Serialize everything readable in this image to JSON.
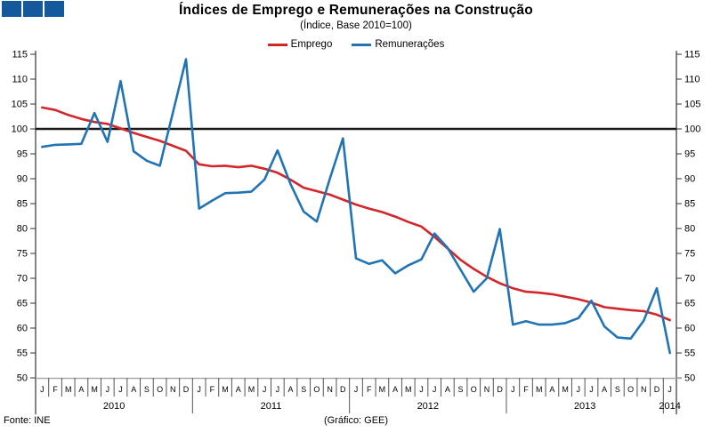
{
  "header": {
    "title": "Índices de Emprego e Remunerações na Construção",
    "subtitle": "(Índice, Base 2010=100)"
  },
  "logo": {
    "square_count": 3,
    "color": "#15599d"
  },
  "legend": {
    "position": "top",
    "items": [
      {
        "label": "Emprego",
        "color": "#d2262b"
      },
      {
        "label": "Remunerações",
        "color": "#2173b4"
      }
    ]
  },
  "chart_data": {
    "type": "line",
    "title": "Índices de Emprego e Remunerações na Construção",
    "subtitle": "(Índice, Base 2010=100)",
    "x_unit": "month",
    "month_letter_cycle": [
      "J",
      "F",
      "M",
      "A",
      "M",
      "J",
      "J",
      "A",
      "S",
      "O",
      "N",
      "D"
    ],
    "years": [
      {
        "label": "2010",
        "months": 12
      },
      {
        "label": "2011",
        "months": 12
      },
      {
        "label": "2012",
        "months": 12
      },
      {
        "label": "2013",
        "months": 12
      },
      {
        "label": "2014",
        "months": 1
      }
    ],
    "ylim": [
      50,
      115
    ],
    "ytick_step": 5,
    "yticks": [
      115,
      110,
      105,
      100,
      95,
      90,
      85,
      80,
      75,
      70,
      65,
      60,
      55,
      50
    ],
    "baseline": 100,
    "baseline_color": "#1b1b1b",
    "grid": false,
    "series": [
      {
        "name": "Emprego",
        "color": "#d2262b",
        "values": [
          104.3,
          103.8,
          102.8,
          102,
          101.4,
          101,
          100.1,
          99.2,
          98.4,
          97.6,
          96.6,
          95.6,
          92.9,
          92.5,
          92.6,
          92.3,
          92.6,
          92,
          91.2,
          89.8,
          88.2,
          87.5,
          86.8,
          85.8,
          84.8,
          84,
          83.3,
          82.4,
          81.3,
          80.4,
          78.3,
          76,
          73.7,
          71.9,
          70.3,
          69,
          68,
          67.3,
          67.1,
          66.8,
          66.3,
          65.8,
          65.1,
          64.2,
          63.9,
          63.6,
          63.4,
          62.7,
          61.6
        ]
      },
      {
        "name": "Remunerações",
        "color": "#2173b4",
        "values": [
          96.4,
          96.8,
          96.9,
          97,
          103.2,
          97.4,
          109.6,
          95.5,
          93.6,
          92.6,
          103.3,
          114,
          84,
          85.6,
          87.1,
          87.2,
          87.4,
          89.8,
          95.7,
          88.9,
          83.4,
          81.4,
          90,
          98.1,
          74,
          72.9,
          73.6,
          71,
          72.6,
          73.8,
          79,
          76.1,
          71.7,
          67.3,
          70,
          79.9,
          60.7,
          61.4,
          60.7,
          60.7,
          61,
          62,
          65.5,
          60.3,
          58.1,
          57.9,
          61.5,
          68,
          55
        ]
      }
    ]
  },
  "footer": {
    "source": "Fonte: INE",
    "credit": "(Gráfico: GEE)"
  }
}
